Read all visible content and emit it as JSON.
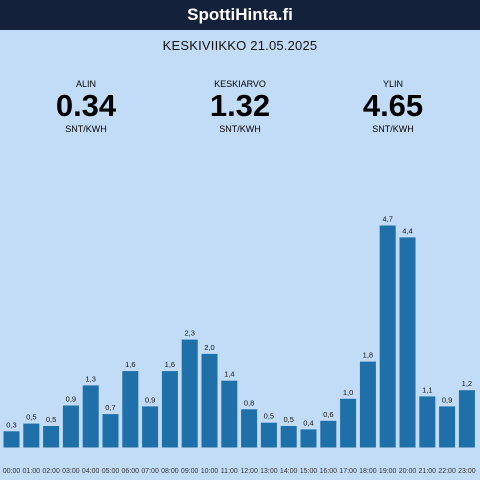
{
  "site": {
    "title": "SpottiHinta.fi"
  },
  "date": "KESKIVIIKKO 21.05.2025",
  "stats": [
    {
      "label": "ALIN",
      "value": "0.34",
      "unit": "SNT/KWH"
    },
    {
      "label": "KESKIARVO",
      "value": "1.32",
      "unit": "SNT/KWH"
    },
    {
      "label": "YLIN",
      "value": "4.65",
      "unit": "SNT/KWH"
    }
  ],
  "colors": {
    "header_bg": "#13213a",
    "page_bg": "#c2dcf7",
    "bar": "#1f6fa8"
  },
  "chart_data": {
    "type": "bar",
    "categories": [
      "00:00",
      "01:00",
      "02:00",
      "03:00",
      "04:00",
      "05:00",
      "06:00",
      "07:00",
      "08:00",
      "09:00",
      "10:00",
      "11:00",
      "12:00",
      "13:00",
      "14:00",
      "15:00",
      "16:00",
      "17:00",
      "18:00",
      "19:00",
      "20:00",
      "21:00",
      "22:00",
      "23:00"
    ],
    "values": [
      0.34,
      0.5,
      0.45,
      0.88,
      1.3,
      0.7,
      1.6,
      0.86,
      1.6,
      2.26,
      1.96,
      1.4,
      0.8,
      0.52,
      0.45,
      0.38,
      0.56,
      1.02,
      1.8,
      4.65,
      4.4,
      1.07,
      0.86,
      1.2
    ],
    "labels": [
      "0,3",
      "0,5",
      "0,5",
      "0,9",
      "1,3",
      "0,7",
      "1,6",
      "0,9",
      "1,6",
      "2,3",
      "2,0",
      "1,4",
      "0,8",
      "0,5",
      "0,5",
      "0,4",
      "0,6",
      "1,0",
      "1,8",
      "4,7",
      "4,4",
      "1,1",
      "0,9",
      "1,2"
    ],
    "ylim": [
      0,
      4.65
    ],
    "grid": false
  }
}
